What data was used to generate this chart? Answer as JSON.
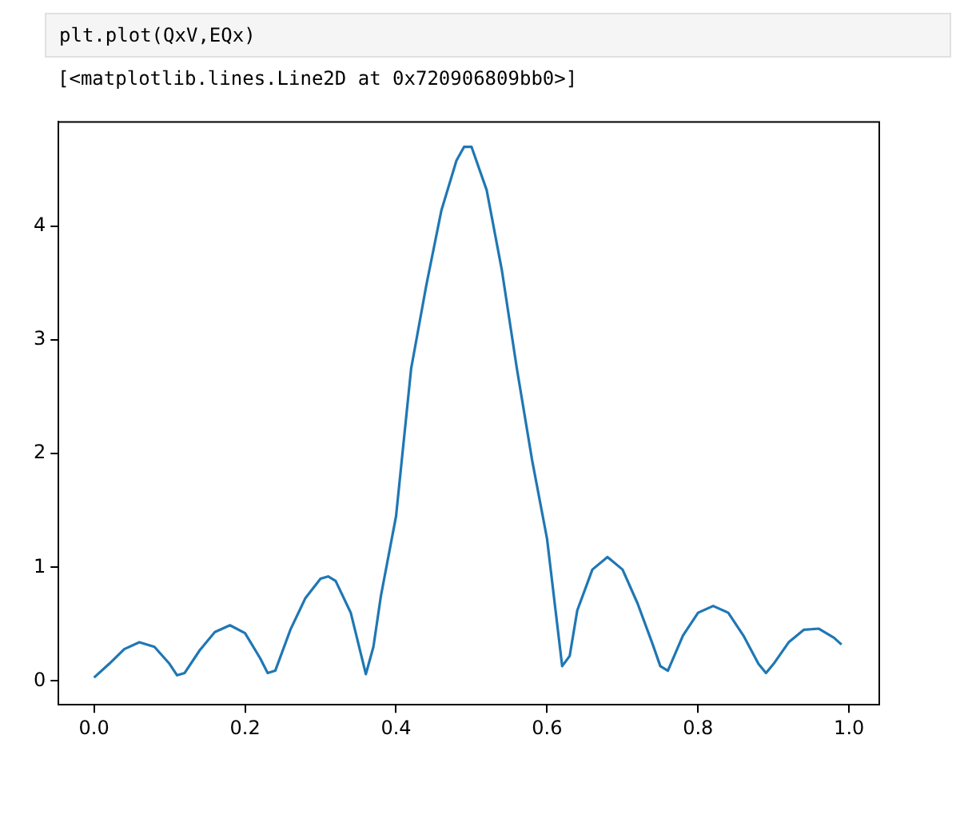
{
  "chart_data": {
    "type": "line",
    "annotations": [
      "plt.plot(QxV,EQx)",
      "[<matplotlib.lines.Line2D at 0x720906809bb0>]"
    ],
    "x": [
      0.0,
      0.02,
      0.04,
      0.06,
      0.08,
      0.1,
      0.11,
      0.12,
      0.14,
      0.16,
      0.18,
      0.2,
      0.22,
      0.23,
      0.24,
      0.26,
      0.28,
      0.3,
      0.31,
      0.32,
      0.34,
      0.36,
      0.37,
      0.38,
      0.4,
      0.42,
      0.44,
      0.46,
      0.48,
      0.49,
      0.5,
      0.52,
      0.54,
      0.56,
      0.58,
      0.6,
      0.62,
      0.63,
      0.64,
      0.66,
      0.68,
      0.7,
      0.72,
      0.74,
      0.75,
      0.76,
      0.78,
      0.8,
      0.82,
      0.84,
      0.86,
      0.88,
      0.89,
      0.9,
      0.92,
      0.94,
      0.96,
      0.98,
      0.99
    ],
    "series": [
      {
        "color": "#1f77b4",
        "values": [
          0.03,
          0.15,
          0.28,
          0.34,
          0.3,
          0.15,
          0.05,
          0.07,
          0.27,
          0.43,
          0.49,
          0.42,
          0.2,
          0.07,
          0.09,
          0.45,
          0.73,
          0.9,
          0.92,
          0.88,
          0.6,
          0.06,
          0.3,
          0.75,
          1.45,
          2.75,
          3.48,
          4.14,
          4.58,
          4.7,
          4.7,
          4.32,
          3.62,
          2.75,
          1.95,
          1.25,
          0.13,
          0.22,
          0.62,
          0.98,
          1.09,
          0.98,
          0.68,
          0.32,
          0.13,
          0.09,
          0.4,
          0.6,
          0.66,
          0.6,
          0.4,
          0.15,
          0.07,
          0.15,
          0.34,
          0.45,
          0.46,
          0.38,
          0.32
        ]
      }
    ],
    "xlim": [
      -0.047,
      1.04
    ],
    "ylim": [
      -0.21,
      4.92
    ],
    "xticks": [
      {
        "value": 0,
        "label": "0.0"
      },
      0.2,
      0.4,
      0.6,
      0.8,
      {
        "value": 1,
        "label": "1.0"
      }
    ],
    "yticks": [
      0,
      1,
      2,
      3,
      4
    ],
    "grid": false,
    "legend": false,
    "marker": "none",
    "line_style": "solid"
  }
}
